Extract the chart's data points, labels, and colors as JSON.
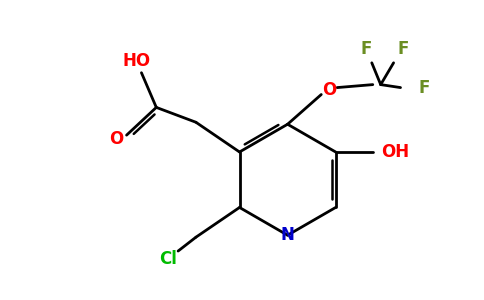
{
  "bg_color": "#ffffff",
  "colors": {
    "O": "#ff0000",
    "N": "#0000cc",
    "Cl": "#00bb00",
    "F": "#6b8e23",
    "bond": "#000000"
  },
  "figsize": [
    4.84,
    3.0
  ],
  "dpi": 100
}
